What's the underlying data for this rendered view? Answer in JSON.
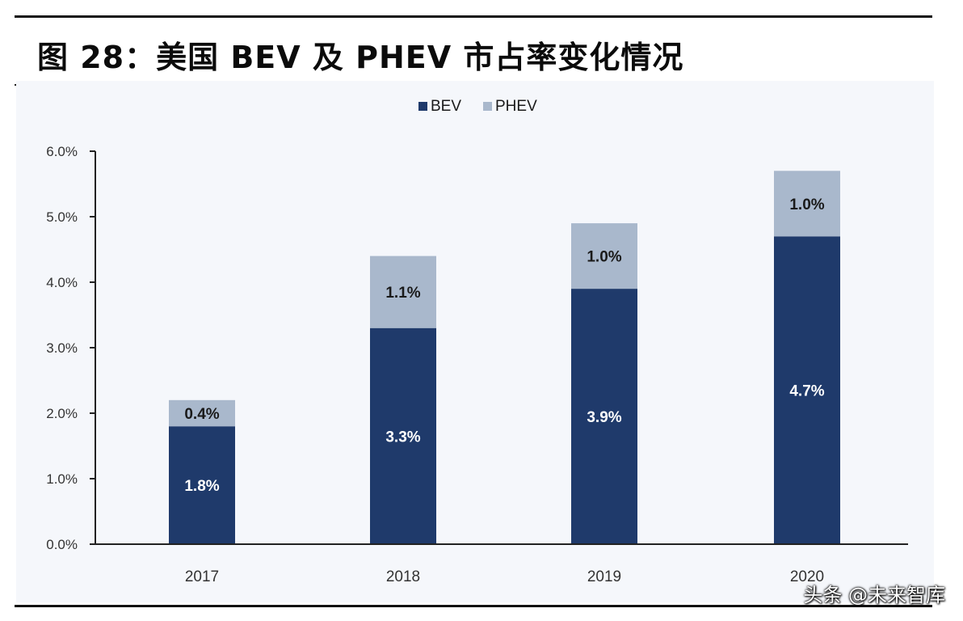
{
  "header": {
    "title": "图 28：美国 BEV 及 PHEV 市占率变化情况"
  },
  "watermark": {
    "text": "头条 @未来智库"
  },
  "colors": {
    "bev": "#1f3a6b",
    "phev": "#a9b8cc",
    "axis": "#222222",
    "label_on_dark": "#ffffff",
    "label_on_light": "#1a1a1a"
  },
  "chart_data": {
    "type": "bar",
    "stacked": true,
    "categories": [
      "2017",
      "2018",
      "2019",
      "2020"
    ],
    "series": [
      {
        "name": "BEV",
        "values": [
          1.8,
          3.3,
          3.9,
          4.7
        ],
        "labels": [
          "1.8%",
          "3.3%",
          "3.9%",
          "4.7%"
        ]
      },
      {
        "name": "PHEV",
        "values": [
          0.4,
          1.1,
          1.0,
          1.0
        ],
        "labels": [
          "0.4%",
          "1.1%",
          "1.0%",
          "1.0%"
        ]
      }
    ],
    "ylim": [
      0,
      6
    ],
    "yticks": [
      0,
      1,
      2,
      3,
      4,
      5,
      6
    ],
    "ytick_labels": [
      "0.0%",
      "1.0%",
      "2.0%",
      "3.0%",
      "4.0%",
      "5.0%",
      "6.0%"
    ],
    "legend_position": "top-center",
    "grid": false,
    "xlabel": "",
    "ylabel": ""
  }
}
